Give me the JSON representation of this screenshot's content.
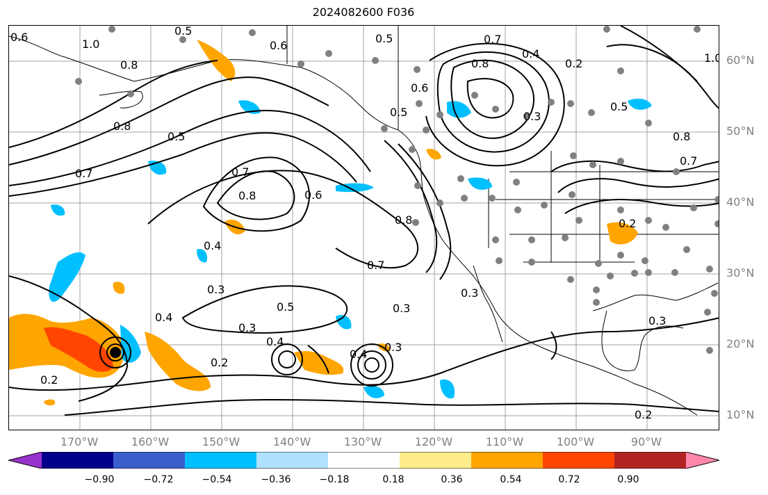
{
  "title": "2024082600 F036",
  "lat_labels": [
    "60°N",
    "50°N",
    "40°N",
    "30°N",
    "20°N",
    "10°N"
  ],
  "lon_labels": [
    "170°W",
    "160°W",
    "150°W",
    "140°W",
    "130°W",
    "120°W",
    "110°W",
    "100°W",
    "90°W"
  ],
  "colorbar": {
    "colors": [
      "#9932cc",
      "#00008b",
      "#3a5fcd",
      "#00bfff",
      "#b0e2ff",
      "#ffffff",
      "#ffec8b",
      "#ffa500",
      "#ff4500",
      "#b22222",
      "#ff88aa"
    ],
    "tick_labels": [
      "−0.90",
      "−0.72",
      "−0.54",
      "−0.36",
      "−0.18",
      "0.18",
      "0.36",
      "0.54",
      "0.72",
      "0.90"
    ]
  },
  "contour_labels": [
    "0.6",
    "1.0",
    "0.8",
    "0.5",
    "0.6",
    "0.5",
    "0.7",
    "0.4",
    "0.8",
    "0.5",
    "1.0",
    "0.3",
    "0.6",
    "0.5",
    "0.7",
    "0.8",
    "0.5",
    "0.7",
    "0.8",
    "0.6",
    "0.8",
    "0.7",
    "0.8",
    "0.2",
    "0.4",
    "0.3",
    "0.7",
    "0.5",
    "0.3",
    "0.2",
    "0.4",
    "0.3",
    "0.4",
    "0.2",
    "0.3",
    "0.4",
    "0.3",
    "0.2",
    "0.3",
    "0.2"
  ],
  "colors": {
    "positive_fill": "#ffa500",
    "strong_positive_fill": "#ff4500",
    "negative_fill": "#00bfff",
    "station_dots": "#808080",
    "contour": "#000000"
  }
}
